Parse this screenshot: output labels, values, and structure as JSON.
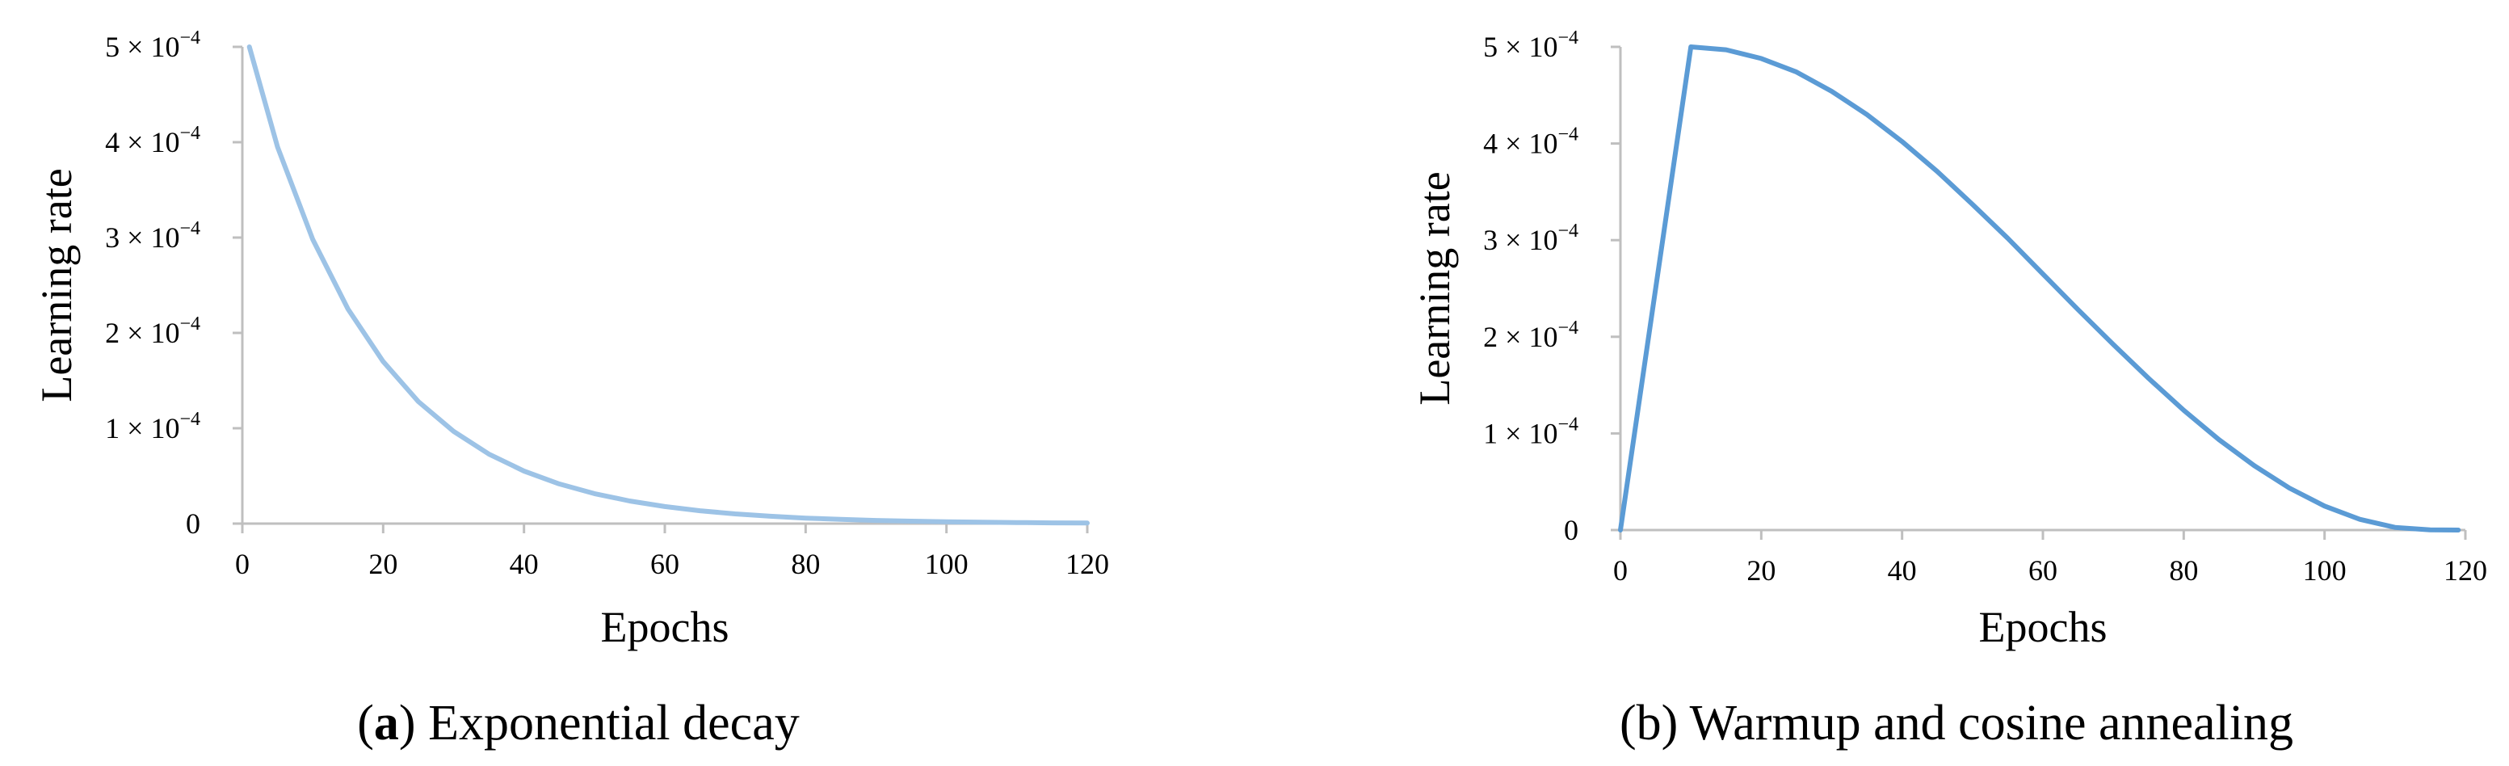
{
  "chart_data": [
    {
      "type": "line",
      "caption_letter": "a",
      "caption_text": " Exponential decay",
      "xlabel": "Epochs",
      "ylabel": "Learning rate",
      "xlim": [
        0,
        120
      ],
      "ylim": [
        0,
        0.0005
      ],
      "grid": false,
      "x_ticks": [
        "0",
        "20",
        "40",
        "60",
        "80",
        "100",
        "120"
      ],
      "y_ticks": [
        {
          "mantissa": "0",
          "exp": ""
        },
        {
          "mantissa": "1 × 10",
          "exp": "−4"
        },
        {
          "mantissa": "2 × 10",
          "exp": "−4"
        },
        {
          "mantissa": "3 × 10",
          "exp": "−4"
        },
        {
          "mantissa": "4 × 10",
          "exp": "−4"
        },
        {
          "mantissa": "5 × 10",
          "exp": "−4"
        }
      ],
      "series": [
        {
          "color": "#9dc3e6",
          "x": [
            1,
            5,
            10,
            15,
            20,
            25,
            30,
            35,
            40,
            45,
            50,
            55,
            60,
            65,
            70,
            75,
            80,
            85,
            90,
            95,
            100,
            105,
            110,
            115,
            120
          ],
          "y": [
            0.0005,
            0.000395,
            0.000298,
            0.000225,
            0.00017,
            0.000128,
            9.68e-05,
            7.3e-05,
            5.51e-05,
            4.16e-05,
            3.14e-05,
            2.37e-05,
            1.79e-05,
            1.35e-05,
            1.02e-05,
            7.7e-06,
            5.8e-06,
            4.4e-06,
            3.3e-06,
            2.5e-06,
            1.9e-06,
            1.4e-06,
            1.1e-06,
            8e-07,
            6e-07
          ]
        }
      ]
    },
    {
      "type": "line",
      "caption_letter": "",
      "caption_text": "(b) Warmup and cosine annealing",
      "xlabel": "Epochs",
      "ylabel": "Learning rate",
      "xlim": [
        0,
        120
      ],
      "ylim": [
        0,
        0.0005
      ],
      "grid": false,
      "x_ticks": [
        "0",
        "20",
        "40",
        "60",
        "80",
        "100",
        "120"
      ],
      "y_ticks": [
        {
          "mantissa": "0",
          "exp": ""
        },
        {
          "mantissa": "1 × 10",
          "exp": "−4"
        },
        {
          "mantissa": "2 × 10",
          "exp": "−4"
        },
        {
          "mantissa": "3 × 10",
          "exp": "−4"
        },
        {
          "mantissa": "4 × 10",
          "exp": "−4"
        },
        {
          "mantissa": "5 × 10",
          "exp": "−4"
        }
      ],
      "series": [
        {
          "color": "#5b9bd5",
          "x": [
            0,
            10,
            15,
            20,
            25,
            30,
            35,
            40,
            45,
            50,
            55,
            60,
            65,
            70,
            75,
            80,
            85,
            90,
            95,
            100,
            105,
            110,
            115,
            119
          ],
          "y": [
            0,
            0.0005,
            0.000497,
            0.000488,
            0.000474,
            0.000454,
            0.00043,
            0.000402,
            0.000371,
            0.000337,
            0.000302,
            0.000265,
            0.000228,
            0.000192,
            0.000157,
            0.000124,
            9.36e-05,
            6.67e-05,
            4.35e-05,
            2.48e-05,
            1.11e-05,
            2.8e-06,
            2e-07,
            0
          ]
        }
      ]
    }
  ]
}
